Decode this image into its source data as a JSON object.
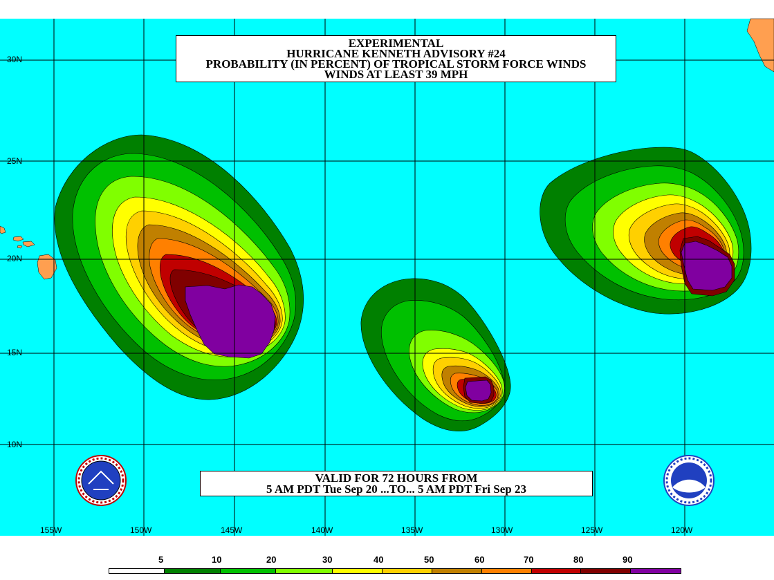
{
  "title_lines": [
    "EXPERIMENTAL",
    "HURRICANE KENNETH ADVISORY #24",
    "PROBABILITY (IN PERCENT) OF TROPICAL STORM FORCE WINDS",
    "WINDS AT LEAST 39 MPH"
  ],
  "valid_lines": [
    "VALID FOR 72 HOURS FROM",
    "5 AM PDT Tue Sep 20 ...TO... 5 AM PDT Fri Sep 23"
  ],
  "lat_labels": [
    "30N",
    "25N",
    "20N",
    "15N",
    "10N"
  ],
  "lon_labels": [
    "155W",
    "150W",
    "145W",
    "140W",
    "135W",
    "130W",
    "125W",
    "120W"
  ],
  "legend_labels": [
    "5",
    "10",
    "20",
    "30",
    "40",
    "50",
    "60",
    "70",
    "80",
    "90"
  ],
  "colors": {
    "ocean": "#00ffff",
    "land": "#ff9f50",
    "p5": "#ffffff",
    "p10": "#008000",
    "p20": "#00c000",
    "p30": "#80ff00",
    "p40": "#ffff00",
    "p50": "#ffd000",
    "p60": "#c08000",
    "p70": "#ff8000",
    "p80": "#c00000",
    "p90": "#800000",
    "p100": "#8000a0"
  },
  "logos": {
    "left": "nws-logo-icon",
    "right": "noaa-logo-icon"
  }
}
